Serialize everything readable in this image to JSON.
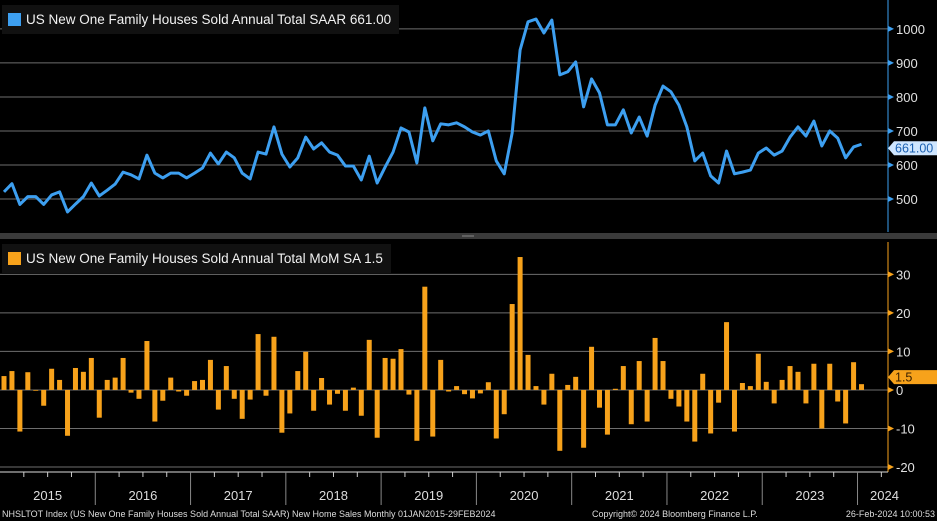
{
  "chart_data": [
    {
      "type": "line",
      "legend": "US New One Family Houses Sold Annual Total SAAR 661.00",
      "series": [
        {
          "name": "US New One Family Houses Sold Annual Total SAAR",
          "color": "#3d9ff0",
          "values": [
            521,
            545,
            484,
            507,
            507,
            484,
            512,
            521,
            462,
            485,
            507,
            547,
            509,
            526,
            544,
            579,
            571,
            559,
            629,
            576,
            562,
            576,
            576,
            562,
            576,
            591,
            635,
            603,
            638,
            621,
            576,
            559,
            638,
            632,
            712,
            632,
            594,
            621,
            682,
            647,
            665,
            638,
            629,
            597,
            597,
            556,
            626,
            547,
            594,
            638,
            709,
            697,
            606,
            768,
            671,
            721,
            718,
            724,
            712,
            697,
            688,
            700,
            612,
            574,
            694,
            938,
            1021,
            1029,
            988,
            1026,
            865,
            874,
            903,
            771,
            853,
            812,
            718,
            718,
            762,
            694,
            741,
            685,
            776,
            832,
            815,
            776,
            712,
            612,
            635,
            568,
            547,
            641,
            574,
            579,
            585,
            635,
            650,
            629,
            641,
            682,
            712,
            685,
            729,
            656,
            700,
            679,
            621,
            653,
            661
          ]
        }
      ],
      "last_value_label": "661.00",
      "y_ticks": [
        "1000",
        "900",
        "800",
        "700",
        "600",
        "500"
      ],
      "ylim": [
        403,
        1085
      ],
      "grid": true
    },
    {
      "type": "bar",
      "legend": "US New One Family Houses Sold Annual Total MoM SA 1.5",
      "series": [
        {
          "name": "US New One Family Houses Sold Annual Total MoM SA",
          "color": "#f7a21b",
          "values": [
            3.6,
            4.9,
            -10.8,
            4.6,
            -0.2,
            -4.1,
            5.5,
            2.6,
            -11.9,
            5.7,
            4.7,
            8.3,
            -7.2,
            2.6,
            3.2,
            8.3,
            -0.7,
            -2.3,
            12.7,
            -8.2,
            -2.8,
            3.2,
            -0.4,
            -1.5,
            2.3,
            2.6,
            7.8,
            -5.1,
            6.2,
            -2.3,
            -7.5,
            -2.5,
            14.5,
            -1.5,
            13.8,
            -11.1,
            -6.1,
            4.9,
            9.9,
            -5.4,
            3.1,
            -3.8,
            -1.0,
            -5.4,
            0.6,
            -6.7,
            13.0,
            -12.4,
            8.3,
            8.1,
            10.6,
            -1.2,
            -13.2,
            26.8,
            -12.1,
            7.8,
            -0.4,
            1.0,
            -1.1,
            -2.2,
            -0.9,
            2.0,
            -12.6,
            -6.3,
            22.3,
            34.5,
            9.1,
            1.0,
            -3.8,
            4.2,
            -15.8,
            1.3,
            3.4,
            -15.0,
            11.2,
            -4.6,
            -11.6,
            0.3,
            6.2,
            -8.9,
            7.5,
            -8.2,
            13.5,
            7.5,
            -2.3,
            -4.3,
            -8.2,
            -13.4,
            4.2,
            -11.3,
            -3.3,
            17.6,
            -10.8,
            1.8,
            1.0,
            9.4,
            2.1,
            -3.5,
            2.6,
            6.2,
            4.7,
            -3.5,
            6.8,
            -10.0,
            6.8,
            -3.0,
            -8.7,
            7.2,
            1.5
          ]
        }
      ],
      "last_value_label": "1.5",
      "y_ticks": [
        "30",
        "20",
        "10",
        "0",
        "-10",
        "-20"
      ],
      "ylim": [
        -21.3,
        38.4
      ],
      "grid": true
    }
  ],
  "x_axis": {
    "years": [
      "2015",
      "2016",
      "2017",
      "2018",
      "2019",
      "2020",
      "2021",
      "2022",
      "2023",
      "2024"
    ],
    "start": "Jan 2015",
    "frequency": "monthly"
  },
  "footer": {
    "left": "NHSLTOT Index (US New One Family Houses Sold Annual Total SAAR) New Home Sales  Monthly 01JAN2015-29FEB2024",
    "center": "Copyright© 2024 Bloomberg Finance L.P.",
    "right": "26-Feb-2024 10:00:53"
  }
}
